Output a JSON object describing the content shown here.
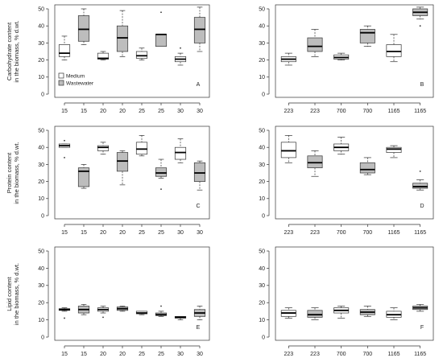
{
  "chart_data": [
    {
      "type": "box",
      "panel": "A",
      "ylabel": [
        "Carbohydrate content",
        "in the biomass, % d.wt."
      ],
      "ylim": [
        0,
        50
      ],
      "yticks": [
        0,
        10,
        20,
        30,
        40,
        50
      ],
      "categories": [
        "15",
        "15",
        "20",
        "20",
        "25",
        "25",
        "30",
        "30"
      ],
      "legend": {
        "position": "bottom-left",
        "entries": [
          {
            "name": "Medium",
            "color": "#ffffff"
          },
          {
            "name": "Wastewater",
            "color": "#bdbdbd"
          }
        ]
      },
      "boxes": [
        {
          "min": 20,
          "q1": 22,
          "median": 24,
          "q3": 29,
          "max": 34,
          "fill": "#ffffff",
          "outliers": []
        },
        {
          "min": 29,
          "q1": 31,
          "median": 38,
          "q3": 46,
          "max": 50,
          "fill": "#bdbdbd",
          "outliers": []
        },
        {
          "min": 20,
          "q1": 20.5,
          "median": 21,
          "q3": 24,
          "max": 25,
          "fill": "#ffffff",
          "outliers": []
        },
        {
          "min": 22,
          "q1": 25,
          "median": 33,
          "q3": 40,
          "max": 49,
          "fill": "#bdbdbd",
          "outliers": []
        },
        {
          "min": 20,
          "q1": 21,
          "median": 22.5,
          "q3": 25,
          "max": 27,
          "fill": "#ffffff",
          "outliers": []
        },
        {
          "min": 28,
          "q1": 28,
          "median": 35,
          "q3": 35,
          "max": 35,
          "fill": "#bdbdbd",
          "outliers": [
            48
          ]
        },
        {
          "min": 17,
          "q1": 19,
          "median": 20.5,
          "q3": 22,
          "max": 24,
          "fill": "#ffffff",
          "outliers": [
            27
          ]
        },
        {
          "min": 25,
          "q1": 30,
          "median": 38,
          "q3": 45,
          "max": 51,
          "fill": "#bdbdbd",
          "outliers": []
        }
      ]
    },
    {
      "type": "box",
      "panel": "B",
      "ylim": [
        0,
        50
      ],
      "yticks": [
        0,
        10,
        20,
        30,
        40,
        50
      ],
      "categories": [
        "223",
        "223",
        "700",
        "700",
        "1165",
        "1165"
      ],
      "boxes": [
        {
          "min": 17,
          "q1": 19,
          "median": 20.5,
          "q3": 22,
          "max": 24,
          "fill": "#ffffff",
          "outliers": []
        },
        {
          "min": 22,
          "q1": 25,
          "median": 28,
          "q3": 33,
          "max": 38,
          "fill": "#bdbdbd",
          "outliers": []
        },
        {
          "min": 20,
          "q1": 20.5,
          "median": 21.5,
          "q3": 23,
          "max": 24,
          "fill": "#ffffff",
          "outliers": []
        },
        {
          "min": 28,
          "q1": 30,
          "median": 36,
          "q3": 38,
          "max": 40,
          "fill": "#bdbdbd",
          "outliers": []
        },
        {
          "min": 19,
          "q1": 22,
          "median": 25,
          "q3": 29,
          "max": 35,
          "fill": "#ffffff",
          "outliers": []
        },
        {
          "min": 44,
          "q1": 46,
          "median": 48,
          "q3": 50,
          "max": 51,
          "fill": "#bdbdbd",
          "outliers": [
            40
          ]
        }
      ]
    },
    {
      "type": "box",
      "panel": "C",
      "ylabel": [
        "Protein content",
        "in the biomass, % d.wt."
      ],
      "ylim": [
        0,
        50
      ],
      "yticks": [
        0,
        10,
        20,
        30,
        40,
        50
      ],
      "categories": [
        "15",
        "15",
        "20",
        "20",
        "25",
        "25",
        "30",
        "30"
      ],
      "boxes": [
        {
          "min": 40,
          "q1": 40,
          "median": 41,
          "q3": 42,
          "max": 42,
          "fill": "#ffffff",
          "outliers": [
            44,
            34
          ]
        },
        {
          "min": 16,
          "q1": 17,
          "median": 26,
          "q3": 28,
          "max": 30,
          "fill": "#bdbdbd",
          "outliers": []
        },
        {
          "min": 36,
          "q1": 38,
          "median": 40,
          "q3": 41,
          "max": 43,
          "fill": "#ffffff",
          "outliers": []
        },
        {
          "min": 18,
          "q1": 26,
          "median": 32,
          "q3": 37,
          "max": 38,
          "fill": "#bdbdbd",
          "outliers": []
        },
        {
          "min": 35,
          "q1": 36,
          "median": 39,
          "q3": 43,
          "max": 47,
          "fill": "#ffffff",
          "outliers": []
        },
        {
          "min": 22,
          "q1": 23,
          "median": 25,
          "q3": 28,
          "max": 33,
          "fill": "#bdbdbd",
          "outliers": [
            15.5
          ]
        },
        {
          "min": 31,
          "q1": 33,
          "median": 37,
          "q3": 40,
          "max": 45,
          "fill": "#ffffff",
          "outliers": []
        },
        {
          "min": 15,
          "q1": 20,
          "median": 25,
          "q3": 31,
          "max": 32,
          "fill": "#bdbdbd",
          "outliers": []
        }
      ]
    },
    {
      "type": "box",
      "panel": "D",
      "ylim": [
        0,
        50
      ],
      "yticks": [
        0,
        10,
        20,
        30,
        40,
        50
      ],
      "categories": [
        "223",
        "223",
        "700",
        "700",
        "1165",
        "1165"
      ],
      "boxes": [
        {
          "min": 31,
          "q1": 34,
          "median": 38,
          "q3": 43,
          "max": 47,
          "fill": "#ffffff",
          "outliers": []
        },
        {
          "min": 23,
          "q1": 28,
          "median": 31,
          "q3": 35,
          "max": 38,
          "fill": "#bdbdbd",
          "outliers": []
        },
        {
          "min": 36,
          "q1": 38,
          "median": 40,
          "q3": 42,
          "max": 46,
          "fill": "#ffffff",
          "outliers": []
        },
        {
          "min": 24,
          "q1": 25,
          "median": 27,
          "q3": 31,
          "max": 34,
          "fill": "#bdbdbd",
          "outliers": []
        },
        {
          "min": 34,
          "q1": 37,
          "median": 39,
          "q3": 40,
          "max": 41,
          "fill": "#ffffff",
          "outliers": []
        },
        {
          "min": 15,
          "q1": 16,
          "median": 17,
          "q3": 19,
          "max": 21,
          "fill": "#bdbdbd",
          "outliers": [
            26
          ]
        }
      ]
    },
    {
      "type": "box",
      "panel": "E",
      "ylabel": [
        "Lipid content",
        "in the biomass, % d.wt."
      ],
      "xlabel": "Temperature, °C",
      "ylim": [
        0,
        50
      ],
      "yticks": [
        0,
        10,
        20,
        30,
        40,
        50
      ],
      "categories": [
        "15",
        "15",
        "20",
        "20",
        "25",
        "25",
        "30",
        "30"
      ],
      "boxes": [
        {
          "min": 15,
          "q1": 15.5,
          "median": 16,
          "q3": 16.5,
          "max": 17,
          "fill": "#ffffff",
          "outliers": [
            11
          ]
        },
        {
          "min": 13,
          "q1": 14,
          "median": 16,
          "q3": 18,
          "max": 19,
          "fill": "#bdbdbd",
          "outliers": []
        },
        {
          "min": 14,
          "q1": 15,
          "median": 16,
          "q3": 17,
          "max": 18,
          "fill": "#ffffff",
          "outliers": [
            11.5
          ]
        },
        {
          "min": 15,
          "q1": 15.5,
          "median": 16.5,
          "q3": 17.5,
          "max": 18,
          "fill": "#bdbdbd",
          "outliers": []
        },
        {
          "min": 13,
          "q1": 13.5,
          "median": 14,
          "q3": 15,
          "max": 15,
          "fill": "#ffffff",
          "outliers": []
        },
        {
          "min": 12,
          "q1": 12.5,
          "median": 13,
          "q3": 14,
          "max": 15,
          "fill": "#bdbdbd",
          "outliers": [
            18
          ]
        },
        {
          "min": 10,
          "q1": 11,
          "median": 11.5,
          "q3": 12,
          "max": 12,
          "fill": "#ffffff",
          "outliers": []
        },
        {
          "min": 10,
          "q1": 12,
          "median": 14,
          "q3": 16,
          "max": 18,
          "fill": "#bdbdbd",
          "outliers": []
        }
      ]
    },
    {
      "type": "box",
      "panel": "F",
      "xlabel": "Light amount, kJ m⁻² day⁻¹",
      "ylim": [
        0,
        50
      ],
      "yticks": [
        0,
        10,
        20,
        30,
        40,
        50
      ],
      "categories": [
        "223",
        "223",
        "700",
        "700",
        "1165",
        "1165"
      ],
      "boxes": [
        {
          "min": 11,
          "q1": 12,
          "median": 14,
          "q3": 15.5,
          "max": 17,
          "fill": "#ffffff",
          "outliers": []
        },
        {
          "min": 10,
          "q1": 11.5,
          "median": 13,
          "q3": 15.5,
          "max": 17,
          "fill": "#bdbdbd",
          "outliers": []
        },
        {
          "min": 11,
          "q1": 14,
          "median": 15.5,
          "q3": 17,
          "max": 18,
          "fill": "#ffffff",
          "outliers": []
        },
        {
          "min": 12,
          "q1": 13,
          "median": 14.5,
          "q3": 16,
          "max": 18,
          "fill": "#bdbdbd",
          "outliers": []
        },
        {
          "min": 10,
          "q1": 11.5,
          "median": 13,
          "q3": 15,
          "max": 17,
          "fill": "#ffffff",
          "outliers": []
        },
        {
          "min": 15,
          "q1": 16,
          "median": 17,
          "q3": 18,
          "max": 19,
          "fill": "#bdbdbd",
          "outliers": []
        }
      ]
    }
  ]
}
